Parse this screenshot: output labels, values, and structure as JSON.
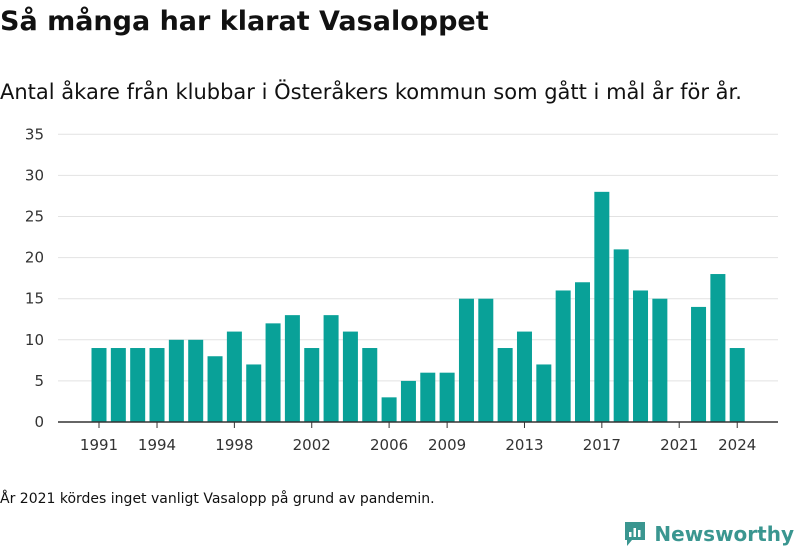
{
  "header": {
    "title": "Så många har klarat Vasaloppet",
    "subtitle": "Antal åkare från klubbar i Österåkers kommun som gått i mål år för år."
  },
  "footer": {
    "note": "År 2021 kördes inget vanligt Vasalopp på grund av pandemin.",
    "brand": "Newsworthy"
  },
  "colors": {
    "bar": "#09a198",
    "brand": "#3a9690",
    "grid": "#e2e2e2",
    "axis": "#333333"
  },
  "chart_data": {
    "type": "bar",
    "categories": [
      "1991",
      "1992",
      "1993",
      "1994",
      "1995",
      "1996",
      "1997",
      "1998",
      "1999",
      "2000",
      "2001",
      "2002",
      "2003",
      "2004",
      "2005",
      "2006",
      "2007",
      "2008",
      "2009",
      "2010",
      "2011",
      "2012",
      "2013",
      "2014",
      "2015",
      "2016",
      "2017",
      "2018",
      "2019",
      "2020",
      "2021",
      "2022",
      "2023",
      "2024"
    ],
    "values": [
      9,
      9,
      9,
      9,
      10,
      10,
      8,
      11,
      7,
      12,
      13,
      9,
      13,
      11,
      9,
      3,
      5,
      6,
      6,
      15,
      15,
      9,
      11,
      7,
      16,
      17,
      28,
      21,
      16,
      15,
      null,
      14,
      18,
      9
    ],
    "x_tick_labels": [
      "1991",
      "1994",
      "1998",
      "2002",
      "2006",
      "2009",
      "2013",
      "2017",
      "2021",
      "2024"
    ],
    "y_ticks": [
      0,
      5,
      10,
      15,
      20,
      25,
      30,
      35
    ],
    "ylim": [
      0,
      35
    ],
    "grid": true,
    "legend": "none"
  }
}
